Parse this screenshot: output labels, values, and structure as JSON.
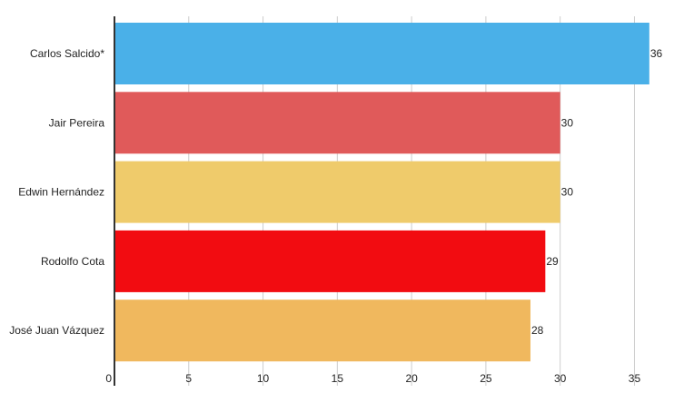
{
  "chart_data": {
    "type": "bar",
    "orientation": "horizontal",
    "title": "",
    "xlabel": "",
    "ylabel": "",
    "categories": [
      "Carlos Salcido*",
      "Jair Pereira",
      "Edwin Hernández",
      "Rodolfo Cota",
      "José Juan Vázquez"
    ],
    "values": [
      36,
      30,
      30,
      29,
      28
    ],
    "bar_colors": [
      "#4ab0e8",
      "#e05a5a",
      "#efcb6b",
      "#f20c11",
      "#f0b85e"
    ],
    "xlim": [
      0,
      36.5
    ],
    "xticks": [
      0,
      5,
      10,
      15,
      20,
      25,
      30,
      35
    ],
    "grid": true,
    "data_labels": true
  }
}
